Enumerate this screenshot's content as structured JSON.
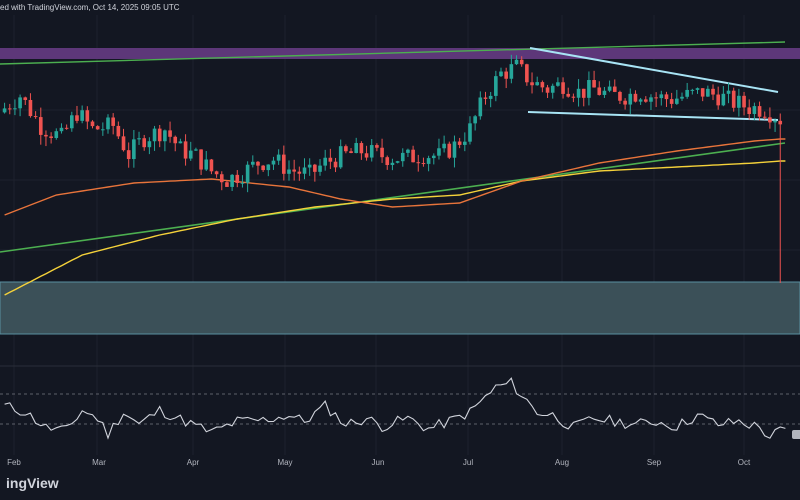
{
  "header": {
    "text": "ed with TradingView.com, Oct 14, 2025 09:05 UTC"
  },
  "footer": {
    "logo_text": "ingView"
  },
  "chart_data": {
    "type": "candlestick",
    "title": "",
    "x_labels": [
      "Feb",
      "Mar",
      "Apr",
      "May",
      "Jun",
      "Jul",
      "Aug",
      "Sep",
      "Oct"
    ],
    "grid": true,
    "colors": {
      "background": "#131722",
      "up": "#26a69a",
      "down": "#ef5350",
      "ma_orange": "#e8743b",
      "ma_yellow": "#f5d23a",
      "trend_green": "#4caf50",
      "channel_light": "#a8e4f5",
      "resistance_zone": "#6a3c8a",
      "support_zone": "#3e5660",
      "rsi_line": "#d1d4dc"
    },
    "price_path": [
      [
        0,
        0.7
      ],
      [
        4,
        0.8
      ],
      [
        8,
        0.62
      ],
      [
        12,
        0.55
      ],
      [
        15,
        0.7
      ],
      [
        18,
        0.6
      ],
      [
        22,
        0.62
      ],
      [
        25,
        0.45
      ],
      [
        28,
        0.55
      ],
      [
        32,
        0.6
      ],
      [
        35,
        0.48
      ],
      [
        38,
        0.44
      ],
      [
        41,
        0.35
      ],
      [
        44,
        0.3
      ],
      [
        47,
        0.34
      ],
      [
        50,
        0.4
      ],
      [
        53,
        0.42
      ],
      [
        56,
        0.36
      ],
      [
        60,
        0.33
      ],
      [
        63,
        0.4
      ],
      [
        66,
        0.44
      ],
      [
        70,
        0.47
      ],
      [
        73,
        0.45
      ],
      [
        76,
        0.43
      ],
      [
        79,
        0.43
      ],
      [
        82,
        0.45
      ],
      [
        85,
        0.44
      ],
      [
        88,
        0.5
      ],
      [
        91,
        0.6
      ],
      [
        94,
        0.8
      ],
      [
        97,
        0.93
      ],
      [
        100,
        0.97
      ],
      [
        103,
        0.88
      ],
      [
        106,
        0.84
      ],
      [
        109,
        0.87
      ],
      [
        112,
        0.82
      ],
      [
        115,
        0.84
      ],
      [
        118,
        0.8
      ],
      [
        121,
        0.8
      ],
      [
        124,
        0.82
      ],
      [
        127,
        0.79
      ],
      [
        130,
        0.78
      ],
      [
        133,
        0.8
      ],
      [
        136,
        0.82
      ],
      [
        139,
        0.8
      ],
      [
        142,
        0.76
      ],
      [
        145,
        0.73
      ],
      [
        148,
        0.72
      ],
      [
        151,
        0.66
      ]
    ],
    "dip": {
      "index": 150,
      "value": 0.07
    },
    "ma_orange": [
      [
        0,
        0.4
      ],
      [
        10,
        0.5
      ],
      [
        25,
        0.56
      ],
      [
        40,
        0.58
      ],
      [
        55,
        0.54
      ],
      [
        65,
        0.48
      ],
      [
        75,
        0.44
      ],
      [
        88,
        0.46
      ],
      [
        100,
        0.57
      ],
      [
        115,
        0.66
      ],
      [
        130,
        0.72
      ],
      [
        145,
        0.77
      ],
      [
        150,
        0.78
      ]
    ],
    "ma_yellow": [
      [
        0,
        0.0
      ],
      [
        15,
        0.2
      ],
      [
        30,
        0.3
      ],
      [
        45,
        0.38
      ],
      [
        60,
        0.44
      ],
      [
        75,
        0.48
      ],
      [
        88,
        0.5
      ],
      [
        100,
        0.57
      ],
      [
        115,
        0.62
      ],
      [
        130,
        0.64
      ],
      [
        145,
        0.66
      ],
      [
        150,
        0.67
      ]
    ],
    "rsi_path": [
      [
        0,
        0.55
      ],
      [
        4,
        0.45
      ],
      [
        8,
        0.2
      ],
      [
        12,
        0.15
      ],
      [
        15,
        0.48
      ],
      [
        18,
        0.35
      ],
      [
        20,
        0.1
      ],
      [
        23,
        0.45
      ],
      [
        26,
        0.25
      ],
      [
        30,
        0.48
      ],
      [
        35,
        0.3
      ],
      [
        40,
        0.12
      ],
      [
        45,
        0.3
      ],
      [
        50,
        0.32
      ],
      [
        55,
        0.4
      ],
      [
        58,
        0.3
      ],
      [
        62,
        0.55
      ],
      [
        66,
        0.25
      ],
      [
        70,
        0.35
      ],
      [
        73,
        0.22
      ],
      [
        78,
        0.35
      ],
      [
        82,
        0.18
      ],
      [
        86,
        0.3
      ],
      [
        90,
        0.45
      ],
      [
        95,
        0.85
      ],
      [
        98,
        0.92
      ],
      [
        100,
        0.72
      ],
      [
        103,
        0.45
      ],
      [
        106,
        0.4
      ],
      [
        110,
        0.2
      ],
      [
        114,
        0.35
      ],
      [
        118,
        0.3
      ],
      [
        122,
        0.25
      ],
      [
        126,
        0.3
      ],
      [
        130,
        0.22
      ],
      [
        134,
        0.4
      ],
      [
        138,
        0.25
      ],
      [
        142,
        0.3
      ],
      [
        146,
        0.2
      ],
      [
        148,
        0.05
      ],
      [
        150,
        0.15
      ]
    ]
  }
}
